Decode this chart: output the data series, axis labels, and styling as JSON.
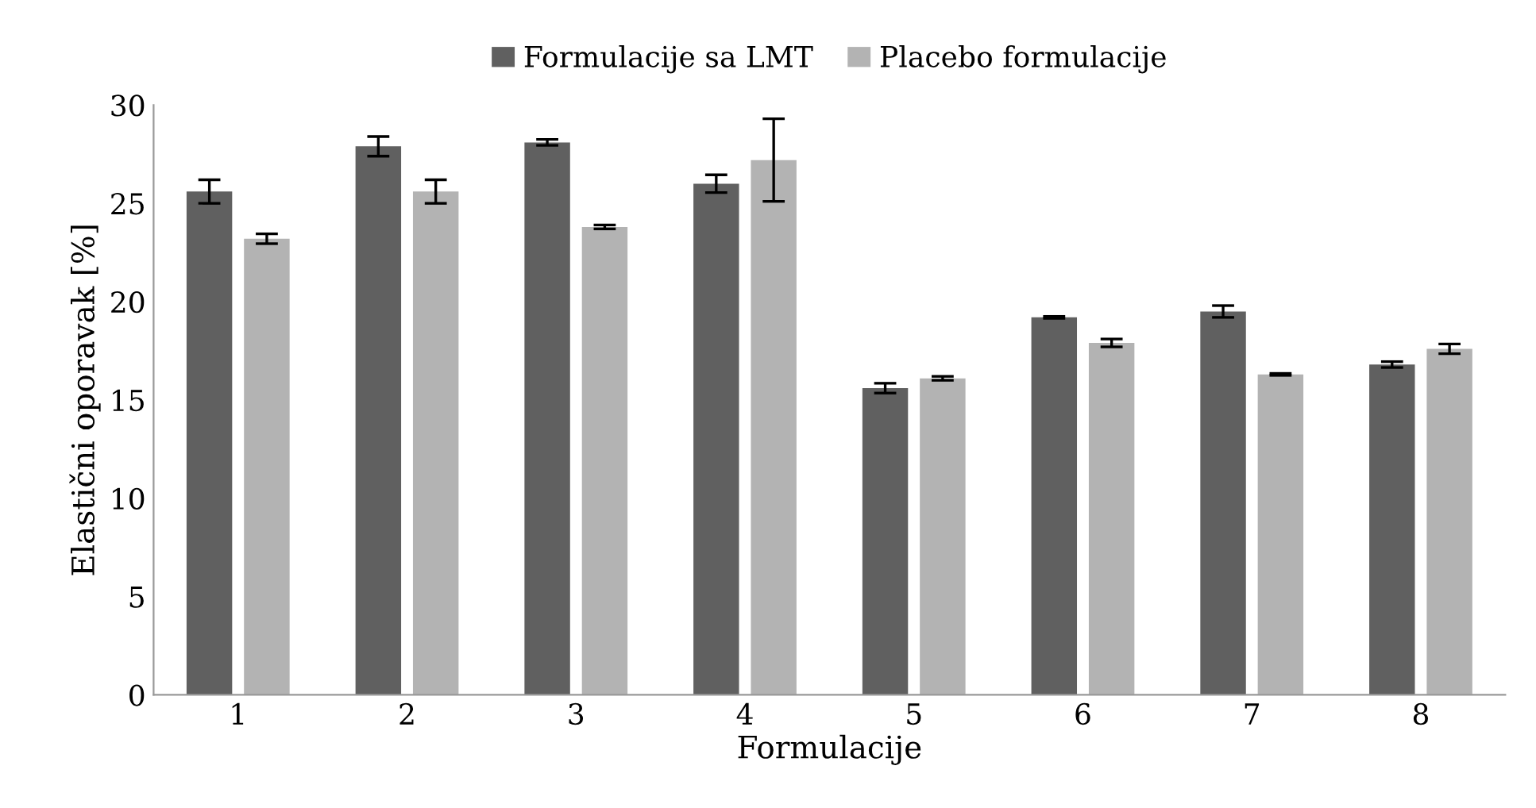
{
  "chart_data": {
    "type": "bar",
    "xlabel": "Formulacije",
    "ylabel": "Elastični oporavak [%]",
    "categories": [
      "1",
      "2",
      "3",
      "4",
      "5",
      "6",
      "7",
      "8"
    ],
    "series": [
      {
        "name": "Formulacije sa LMT",
        "color": "#606060",
        "values": [
          25.6,
          27.9,
          28.1,
          26.0,
          15.6,
          19.2,
          19.5,
          16.8
        ],
        "errors": [
          0.6,
          0.5,
          0.15,
          0.45,
          0.25,
          0.05,
          0.3,
          0.15
        ]
      },
      {
        "name": "Placebo formulacije",
        "color": "#b3b3b3",
        "values": [
          23.2,
          25.6,
          23.8,
          27.2,
          16.1,
          17.9,
          16.3,
          17.6
        ],
        "errors": [
          0.25,
          0.6,
          0.1,
          2.1,
          0.1,
          0.2,
          0.05,
          0.25
        ]
      }
    ],
    "ylim": [
      0,
      30
    ],
    "yticks": [
      0,
      5,
      10,
      15,
      20,
      25,
      30
    ],
    "grid": false,
    "legend": "top"
  }
}
